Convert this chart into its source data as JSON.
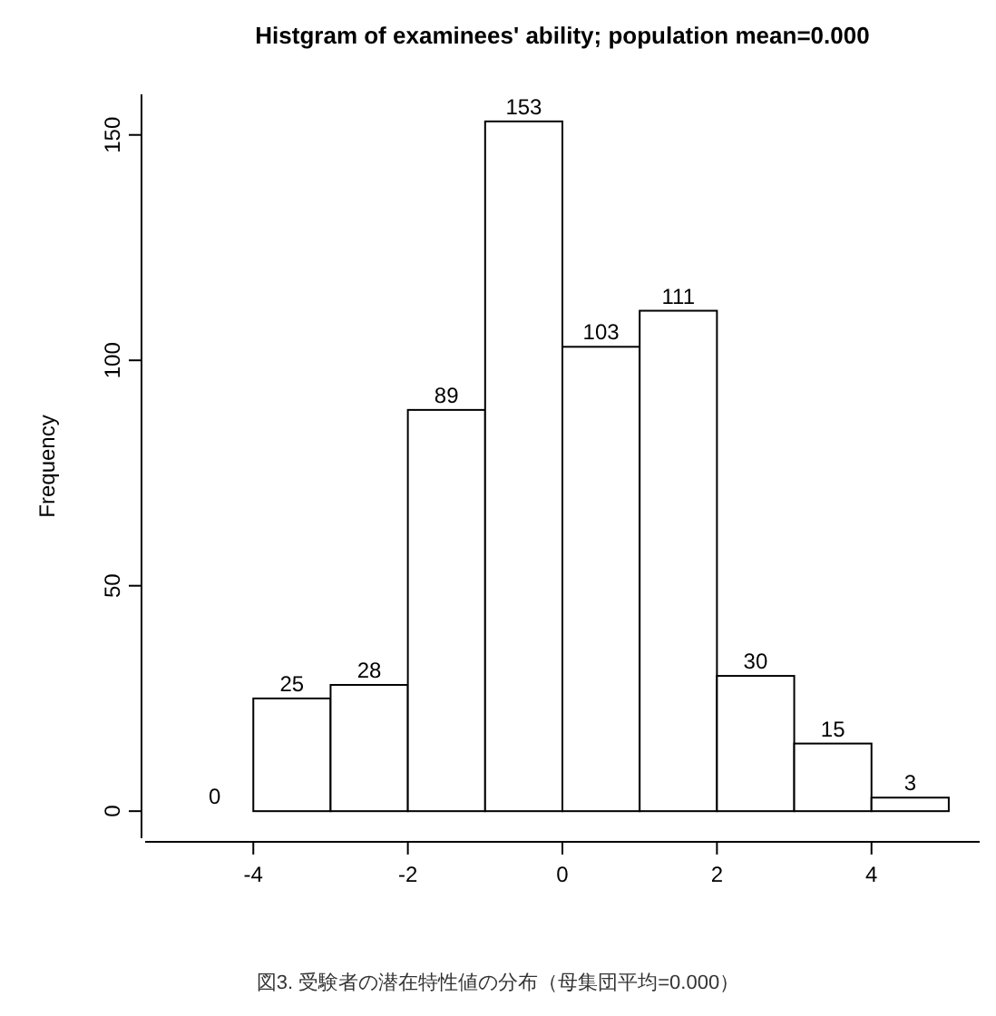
{
  "chart_data": {
    "type": "histogram",
    "title": "Histgram of examinees' ability; population mean=0.000",
    "ylabel": "Frequency",
    "bins": [
      -5,
      -4,
      -3,
      -2,
      -1,
      0,
      1,
      2,
      3,
      4,
      5
    ],
    "values": [
      0,
      25,
      28,
      89,
      153,
      103,
      111,
      30,
      15,
      3
    ],
    "xlim": [
      -5.4,
      5.4
    ],
    "ylim": [
      -6,
      159
    ],
    "xticks": [
      -4,
      -2,
      0,
      2,
      4
    ],
    "yticks": [
      0,
      50,
      100,
      150
    ],
    "data_labels": true,
    "grid": false,
    "annotations": [
      "図3. 受験者の潜在特性値の分布（母集団平均=0.000）"
    ]
  }
}
